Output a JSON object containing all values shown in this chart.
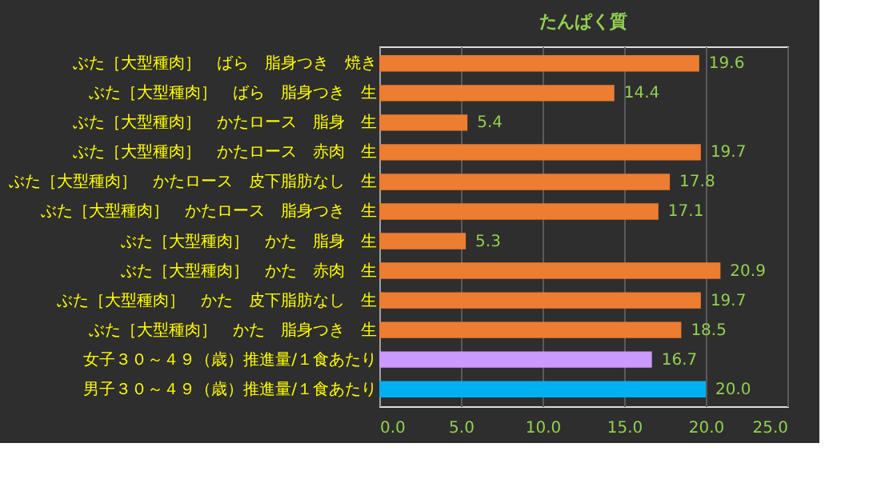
{
  "chart_data": {
    "type": "bar",
    "orientation": "horizontal",
    "title": "たんぱく質",
    "categories": [
      "ぶた［大型種肉］　ばら　脂身つき　焼き",
      "ぶた［大型種肉］　ばら　脂身つき　生",
      "ぶた［大型種肉］　かたロース　脂身　生",
      "ぶた［大型種肉］　かたロース　赤肉　生",
      "ぶた［大型種肉］　かたロース　皮下脂肪なし　生",
      "ぶた［大型種肉］　かたロース　脂身つき　生",
      "ぶた［大型種肉］　かた　脂身　生",
      "ぶた［大型種肉］　かた　赤肉　生",
      "ぶた［大型種肉］　かた　皮下脂肪なし　生",
      "ぶた［大型種肉］　かた　脂身つき　生",
      "女子３０～４９（歳）推進量/１食あたり",
      "男子３０～４９（歳）推進量/１食あたり"
    ],
    "values": [
      19.6,
      14.4,
      5.4,
      19.7,
      17.8,
      17.1,
      5.3,
      20.9,
      19.7,
      18.5,
      16.7,
      20.0
    ],
    "value_labels": [
      "19.6",
      "14.4",
      "5.4",
      "19.7",
      "17.8",
      "17.1",
      "5.3",
      "20.9",
      "19.7",
      "18.5",
      "16.7",
      "20.0"
    ],
    "colors": [
      "#ed7d31",
      "#ed7d31",
      "#ed7d31",
      "#ed7d31",
      "#ed7d31",
      "#ed7d31",
      "#ed7d31",
      "#ed7d31",
      "#ed7d31",
      "#ed7d31",
      "#cc99ff",
      "#00b0f0"
    ],
    "xlim": [
      0,
      25
    ],
    "xticks": [
      {
        "value": 0,
        "label": "0.0"
      },
      {
        "value": 5,
        "label": "5.0"
      },
      {
        "value": 10,
        "label": "10.0"
      },
      {
        "value": 15,
        "label": "15.0"
      },
      {
        "value": 20,
        "label": "20.0"
      },
      {
        "value": 25,
        "label": "25.0"
      }
    ],
    "grid": "x"
  }
}
